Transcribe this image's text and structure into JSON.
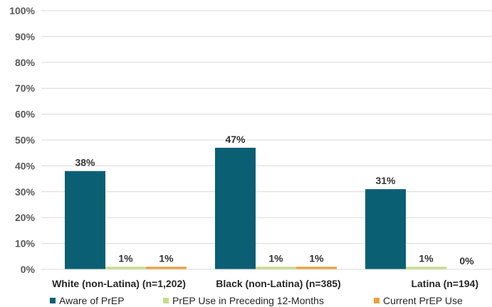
{
  "chart_data": {
    "type": "bar",
    "categories": [
      "White (non-Latina) (n=1,202)",
      "Black (non-Latina) (n=385)",
      "Latina (n=194)"
    ],
    "series": [
      {
        "name": "Aware of PrEP",
        "values": [
          38,
          47,
          31
        ],
        "labels": [
          "38%",
          "47%",
          "31%"
        ],
        "color": "#0a5f73"
      },
      {
        "name": "PrEP Use in Preceding 12-Months",
        "values": [
          1,
          1,
          1
        ],
        "labels": [
          "1%",
          "1%",
          "1%"
        ],
        "color": "#c5dd86"
      },
      {
        "name": "Current PrEP Use",
        "values": [
          1,
          1,
          0
        ],
        "labels": [
          "1%",
          "1%",
          "0%"
        ],
        "color": "#e9a13b"
      }
    ],
    "ylim": [
      0,
      100
    ],
    "yticks": [
      "0%",
      "10%",
      "20%",
      "30%",
      "40%",
      "50%",
      "60%",
      "70%",
      "80%",
      "90%",
      "100%"
    ],
    "title": "",
    "xlabel": "",
    "ylabel": "",
    "grid": true,
    "legend": "bottom",
    "gridColor": "#d9d9d9"
  }
}
